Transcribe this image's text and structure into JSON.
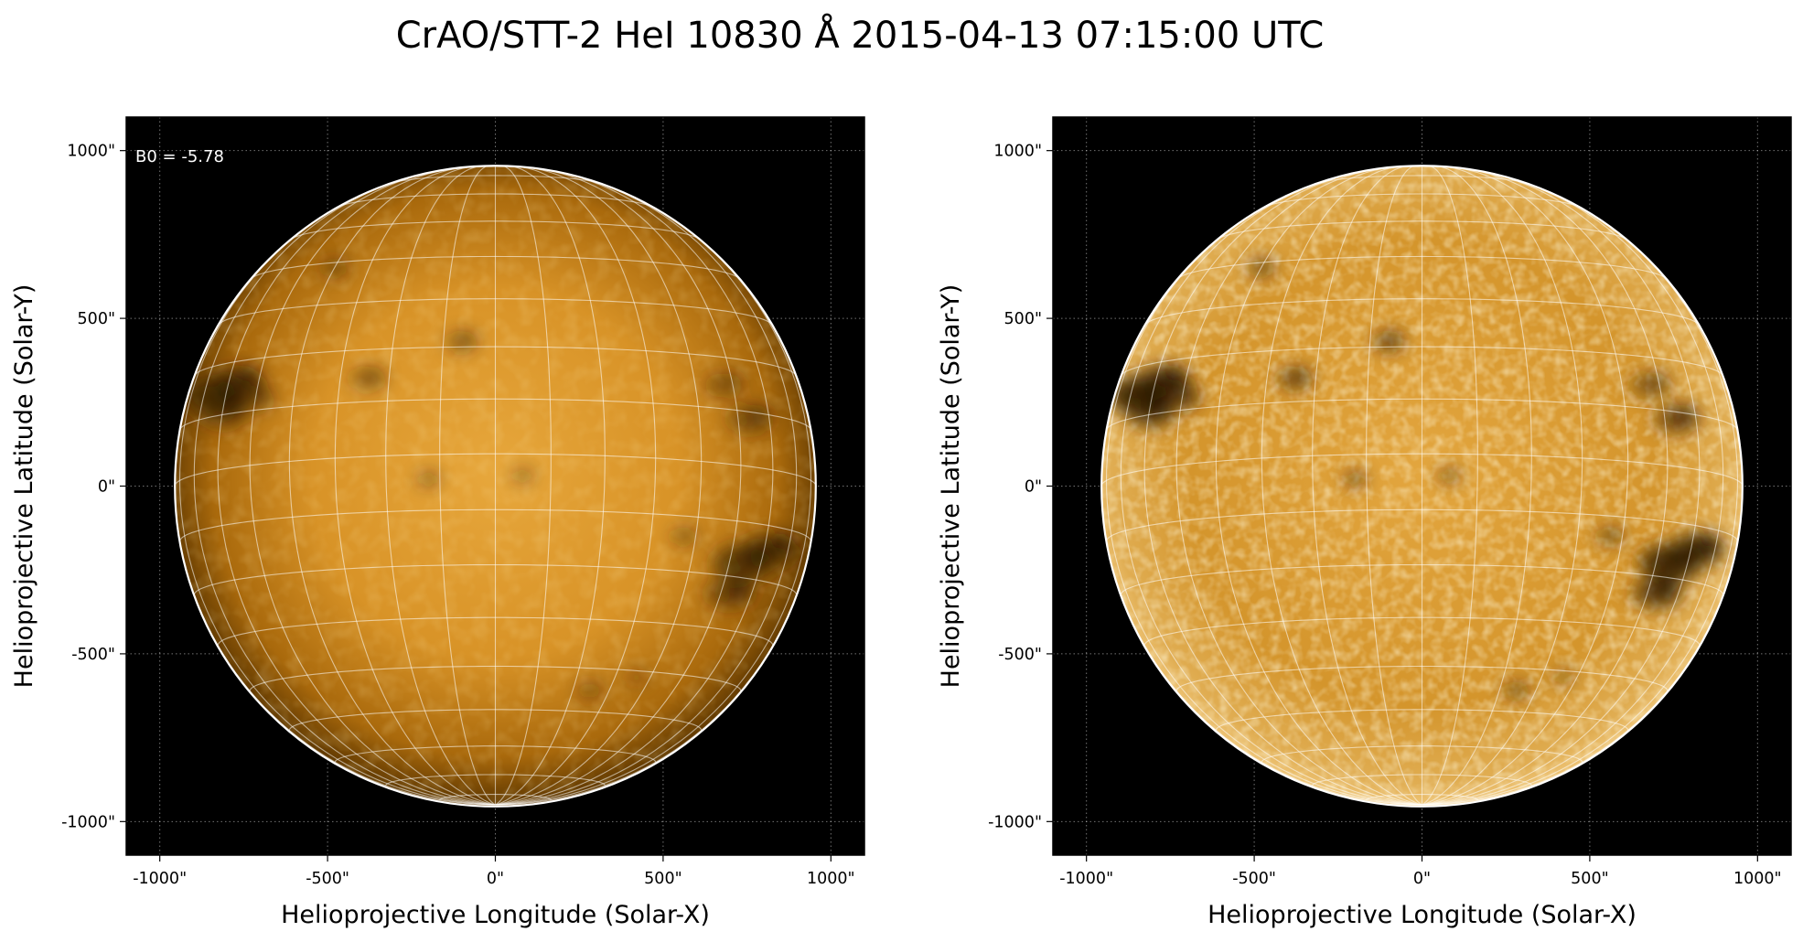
{
  "title": "CrAO/STT-2 HeI 10830 Å 2015-04-13 07:15:00 UTC",
  "panels": [
    {
      "id": "left",
      "variant": "standard-contrast",
      "annotation": "B0 = -5.78",
      "xlabel": "Helioprojective Longitude (Solar-X)",
      "ylabel": "Helioprojective Latitude (Solar-Y)",
      "x_ticks": [
        "-1000\"",
        "-500\"",
        "0\"",
        "500\"",
        "1000\""
      ],
      "y_ticks": [
        "1000\"",
        "500\"",
        "0\"",
        "-500\"",
        "-1000\""
      ]
    },
    {
      "id": "right",
      "variant": "enhanced-contrast",
      "annotation": "",
      "xlabel": "Helioprojective Longitude (Solar-X)",
      "ylabel": "Helioprojective Latitude (Solar-Y)",
      "x_ticks": [
        "-1000\"",
        "-500\"",
        "0\"",
        "500\"",
        "1000\""
      ],
      "y_ticks": [
        "1000\"",
        "500\"",
        "0\"",
        "-500\"",
        "-1000\""
      ]
    }
  ],
  "axes": {
    "xlim": [
      -1100,
      1100
    ],
    "ylim": [
      -1100,
      1100
    ],
    "tick_values": [
      -1000,
      -500,
      0,
      500,
      1000
    ],
    "unit": "arcsec",
    "solar_radius": 955,
    "b0_degrees": -5.78,
    "grid": "dotted-white",
    "heliographic_grid_spacing_degrees": 10
  },
  "colors": {
    "page_background": "#ffffff",
    "plot_background": "#000000",
    "disk_light": "#e8a538",
    "disk_dark": "#3a2200",
    "limb": "#ffffff",
    "text": "#000000"
  },
  "features": [
    {
      "lon": -840,
      "lat": 270,
      "strength": 0.9,
      "size": 70
    },
    {
      "lon": -770,
      "lat": 310,
      "strength": 0.75,
      "size": 60
    },
    {
      "lon": -810,
      "lat": 220,
      "strength": 0.7,
      "size": 55
    },
    {
      "lon": -720,
      "lat": 260,
      "strength": 0.55,
      "size": 45
    },
    {
      "lon": -380,
      "lat": 320,
      "strength": 0.55,
      "size": 40
    },
    {
      "lon": -100,
      "lat": 430,
      "strength": 0.6,
      "size": 35
    },
    {
      "lon": -480,
      "lat": 650,
      "strength": 0.55,
      "size": 30
    },
    {
      "lon": -200,
      "lat": 20,
      "strength": 0.6,
      "size": 25
    },
    {
      "lon": 80,
      "lat": 30,
      "strength": 0.5,
      "size": 25
    },
    {
      "lon": 560,
      "lat": -150,
      "strength": 0.5,
      "size": 30
    },
    {
      "lon": 740,
      "lat": -230,
      "strength": 0.85,
      "size": 70
    },
    {
      "lon": 820,
      "lat": -190,
      "strength": 0.8,
      "size": 60
    },
    {
      "lon": 700,
      "lat": -320,
      "strength": 0.7,
      "size": 55
    },
    {
      "lon": 760,
      "lat": 200,
      "strength": 0.6,
      "size": 50
    },
    {
      "lon": 680,
      "lat": 300,
      "strength": 0.45,
      "size": 45
    },
    {
      "lon": 280,
      "lat": -610,
      "strength": 0.45,
      "size": 30
    },
    {
      "lon": 420,
      "lat": -570,
      "strength": 0.35,
      "size": 25
    }
  ]
}
